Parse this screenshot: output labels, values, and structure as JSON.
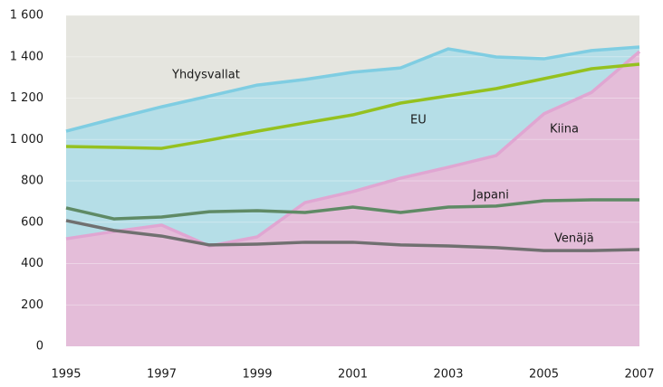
{
  "chart_data": {
    "type": "line",
    "x": [
      1995,
      1996,
      1997,
      1998,
      1999,
      2000,
      2001,
      2002,
      2003,
      2004,
      2005,
      2006,
      2007
    ],
    "xlim": [
      1995,
      2007
    ],
    "xticks": [
      1995,
      1997,
      1999,
      2001,
      2003,
      2005,
      2007
    ],
    "ylim": [
      0,
      1600
    ],
    "yticks": [
      0,
      200,
      400,
      600,
      800,
      {
        "value": 1000,
        "label": "1 000"
      },
      {
        "value": 1200,
        "label": "1 200"
      },
      {
        "value": 1400,
        "label": "1 400"
      },
      {
        "value": 1600,
        "label": "1 600"
      }
    ],
    "grid": true,
    "series": [
      {
        "name": "Yhdysvallat",
        "color": "#7fcde2",
        "fill": "#b5dee7",
        "area": true,
        "values": [
          1040,
          1100,
          1158,
          1210,
          1263,
          1290,
          1325,
          1346,
          1438,
          1399,
          1390,
          1430,
          1447
        ]
      },
      {
        "name": "Kiina",
        "color": "#e0a6d2",
        "fill": "#e4bdd9",
        "area": true,
        "values": [
          520,
          555,
          586,
          485,
          529,
          695,
          748,
          813,
          866,
          922,
          1124,
          1228,
          1425
        ]
      },
      {
        "name": "EU",
        "color": "#95c11f",
        "area": false,
        "values": [
          966,
          962,
          957,
          997,
          1040,
          1080,
          1119,
          1176,
          1211,
          1246,
          1294,
          1342,
          1364
        ]
      },
      {
        "name": "Japani",
        "color": "#5f8a65",
        "area": false,
        "values": [
          669,
          616,
          625,
          651,
          656,
          647,
          673,
          647,
          673,
          678,
          704,
          708,
          708
        ]
      },
      {
        "name": "Venäjä",
        "color": "#707070",
        "area": false,
        "values": [
          608,
          560,
          533,
          490,
          494,
          503,
          503,
          490,
          485,
          477,
          463,
          463,
          468
        ]
      }
    ]
  }
}
